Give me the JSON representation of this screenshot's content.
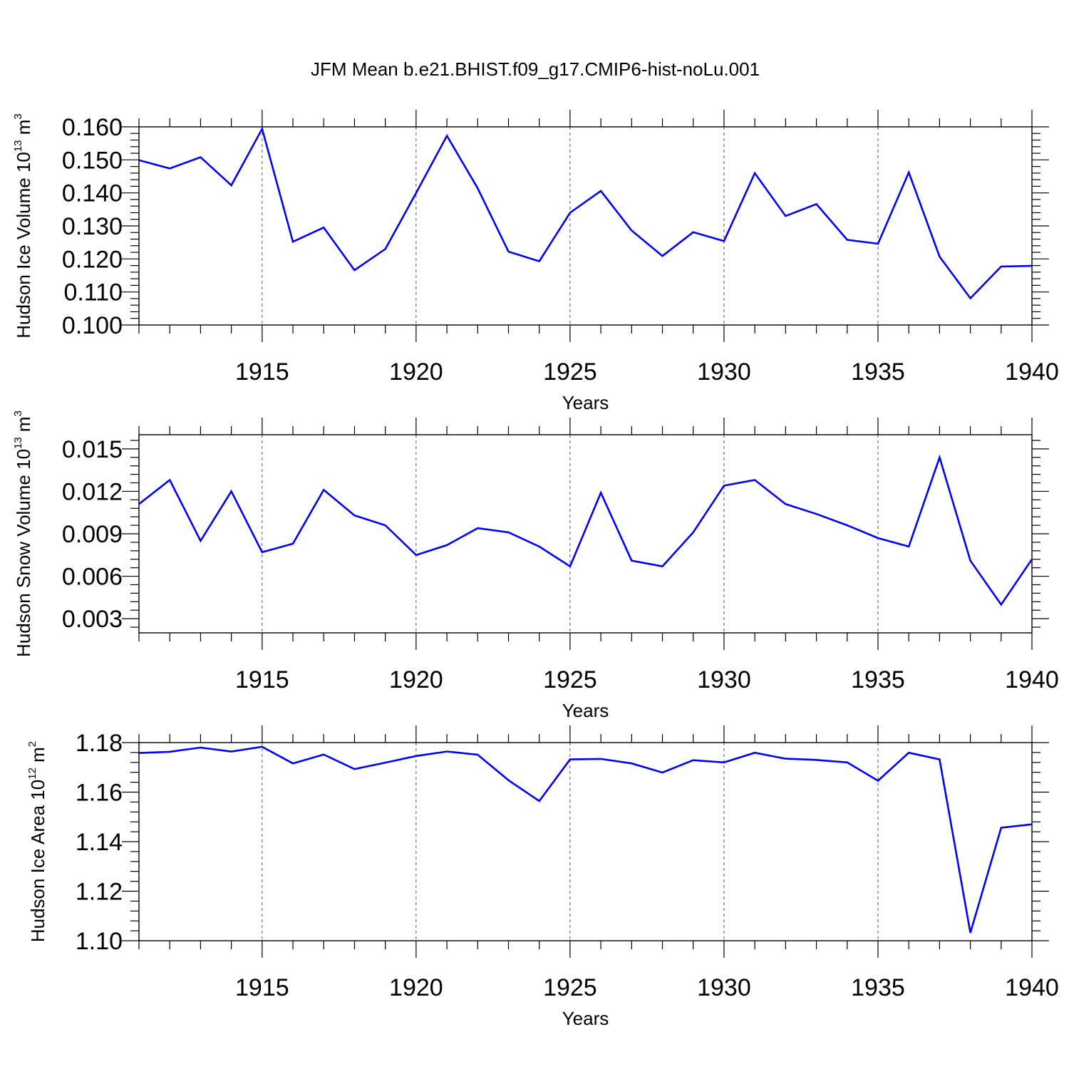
{
  "title": "JFM Mean b.e21.BHIST.f09_g17.CMIP6-hist-noLu.001",
  "chart_data": [
    {
      "type": "line",
      "xlabel": "Years",
      "ylabel": {
        "main": "Hudson Ice Volume 10",
        "exp": "13",
        "unit": " m",
        "unit_exp": "3"
      },
      "xlim": [
        1911,
        1940
      ],
      "ylim": [
        0.1,
        0.16
      ],
      "xticks": [
        1915,
        1920,
        1925,
        1930,
        1935,
        1940
      ],
      "xtick_labels": [
        "1915",
        "1920",
        "1925",
        "1930",
        "1935",
        "1940"
      ],
      "yticks": [
        0.1,
        0.11,
        0.12,
        0.13,
        0.14,
        0.15,
        0.16
      ],
      "ytick_labels": [
        "0.100",
        "0.110",
        "0.120",
        "0.130",
        "0.140",
        "0.150",
        "0.160"
      ],
      "color": "#0000ff",
      "grid": "vertical dashed at major x ticks",
      "x": [
        1911,
        1912,
        1913,
        1914,
        1915,
        1916,
        1917,
        1918,
        1919,
        1920,
        1921,
        1922,
        1923,
        1924,
        1925,
        1926,
        1927,
        1928,
        1929,
        1930,
        1931,
        1932,
        1933,
        1934,
        1935,
        1936,
        1937,
        1938,
        1939,
        1940
      ],
      "values": [
        0.1499,
        0.1474,
        0.1508,
        0.1423,
        0.1594,
        0.1252,
        0.1295,
        0.1166,
        0.123,
        0.14,
        0.1573,
        0.1414,
        0.1222,
        0.1193,
        0.134,
        0.1406,
        0.1286,
        0.1209,
        0.1281,
        0.1254,
        0.146,
        0.133,
        0.1366,
        0.1258,
        0.1246,
        0.1462,
        0.1207,
        0.1081,
        0.1177,
        0.1179
      ]
    },
    {
      "type": "line",
      "xlabel": "Years",
      "ylabel": {
        "main": "Hudson Snow Volume 10",
        "exp": "13",
        "unit": " m",
        "unit_exp": "3"
      },
      "xlim": [
        1911,
        1940
      ],
      "ylim": [
        0.002,
        0.016
      ],
      "xticks": [
        1915,
        1920,
        1925,
        1930,
        1935,
        1940
      ],
      "xtick_labels": [
        "1915",
        "1920",
        "1925",
        "1930",
        "1935",
        "1940"
      ],
      "yticks": [
        0.003,
        0.006,
        0.009,
        0.012,
        0.015
      ],
      "ytick_labels": [
        "0.003",
        "0.006",
        "0.009",
        "0.012",
        "0.015"
      ],
      "color": "#0000ff",
      "grid": "vertical dashed at major x ticks",
      "x": [
        1911,
        1912,
        1913,
        1914,
        1915,
        1916,
        1917,
        1918,
        1919,
        1920,
        1921,
        1922,
        1923,
        1924,
        1925,
        1926,
        1927,
        1928,
        1929,
        1930,
        1931,
        1932,
        1933,
        1934,
        1935,
        1936,
        1937,
        1938,
        1939,
        1940
      ],
      "values": [
        0.0111,
        0.0128,
        0.0085,
        0.012,
        0.0077,
        0.0083,
        0.0121,
        0.0103,
        0.0096,
        0.0075,
        0.0082,
        0.0094,
        0.0091,
        0.0081,
        0.0067,
        0.0119,
        0.0071,
        0.0067,
        0.0091,
        0.0124,
        0.0128,
        0.0111,
        0.0104,
        0.0096,
        0.0087,
        0.0081,
        0.0144,
        0.0071,
        0.004,
        0.0072
      ]
    },
    {
      "type": "line",
      "xlabel": "Years",
      "ylabel": {
        "main": "Hudson Ice Area 10",
        "exp": "12",
        "unit": " m",
        "unit_exp": "2"
      },
      "xlim": [
        1911,
        1940
      ],
      "ylim": [
        1.1,
        1.18
      ],
      "xticks": [
        1915,
        1920,
        1925,
        1930,
        1935,
        1940
      ],
      "xtick_labels": [
        "1915",
        "1920",
        "1925",
        "1930",
        "1935",
        "1940"
      ],
      "yticks": [
        1.1,
        1.12,
        1.14,
        1.16,
        1.18
      ],
      "ytick_labels": [
        "1.10",
        "1.12",
        "1.14",
        "1.16",
        "1.18"
      ],
      "color": "#0000ff",
      "grid": "vertical dashed at major x ticks",
      "x": [
        1911,
        1912,
        1913,
        1914,
        1915,
        1916,
        1917,
        1918,
        1919,
        1920,
        1921,
        1922,
        1923,
        1924,
        1925,
        1926,
        1927,
        1928,
        1929,
        1930,
        1931,
        1932,
        1933,
        1934,
        1935,
        1936,
        1937,
        1938,
        1939,
        1940
      ],
      "values": [
        1.1758,
        1.1763,
        1.178,
        1.1764,
        1.1783,
        1.1716,
        1.1752,
        1.1693,
        1.1719,
        1.1746,
        1.1764,
        1.1751,
        1.1648,
        1.1564,
        1.1732,
        1.1734,
        1.1716,
        1.1679,
        1.1729,
        1.172,
        1.1759,
        1.1735,
        1.173,
        1.172,
        1.1646,
        1.1759,
        1.1732,
        1.1032,
        1.1456,
        1.147
      ]
    }
  ]
}
